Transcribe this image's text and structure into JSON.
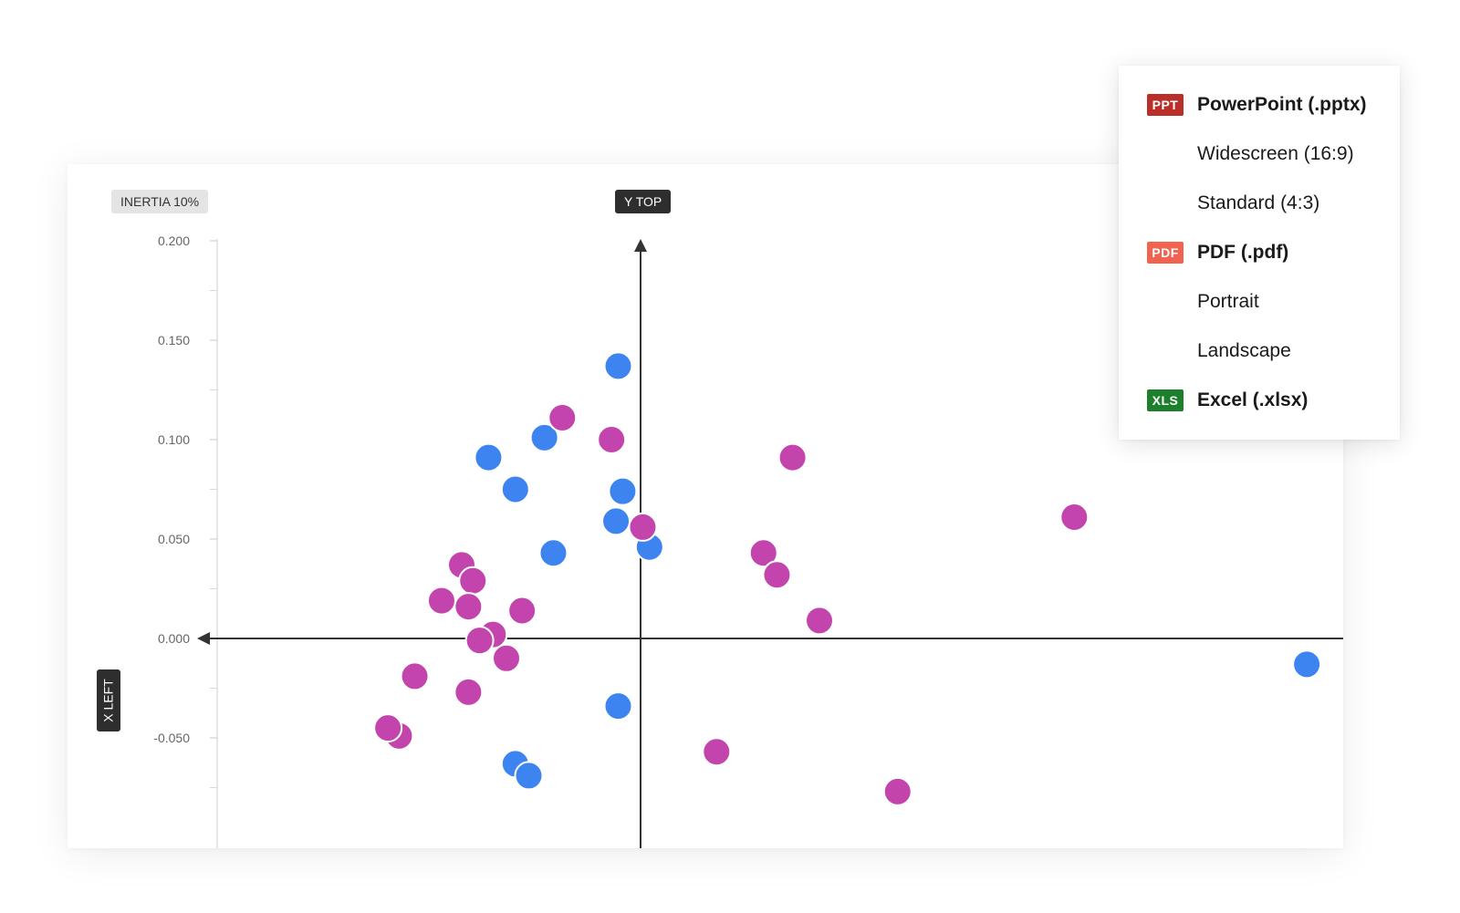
{
  "chart_data": {
    "type": "scatter",
    "yticks": [
      "0.200",
      "0.150",
      "0.100",
      "0.050",
      "0.000",
      "-0.050"
    ],
    "ylim": [
      -0.095,
      0.205
    ],
    "xlim": [
      -0.19,
      0.32
    ],
    "axis_labels": {
      "x": "X LEFT",
      "y": "Y TOP"
    },
    "inertia_label": "INERTIA 10%",
    "series": [
      {
        "color": "#3d84f0",
        "points": [
          [
            -0.01,
            0.137
          ],
          [
            -0.043,
            0.101
          ],
          [
            -0.068,
            0.091
          ],
          [
            -0.056,
            0.075
          ],
          [
            -0.008,
            0.074
          ],
          [
            -0.011,
            0.059
          ],
          [
            0.004,
            0.046
          ],
          [
            -0.039,
            0.043
          ],
          [
            -0.01,
            -0.034
          ],
          [
            -0.056,
            -0.063
          ],
          [
            -0.05,
            -0.069
          ],
          [
            0.298,
            -0.013
          ]
        ]
      },
      {
        "color": "#c444ad",
        "points": [
          [
            -0.035,
            0.111
          ],
          [
            -0.013,
            0.1
          ],
          [
            0.068,
            0.091
          ],
          [
            0.194,
            0.061
          ],
          [
            0.001,
            0.056
          ],
          [
            0.055,
            0.043
          ],
          [
            0.061,
            0.032
          ],
          [
            0.08,
            0.009
          ],
          [
            -0.08,
            0.037
          ],
          [
            -0.075,
            0.029
          ],
          [
            -0.089,
            0.019
          ],
          [
            -0.077,
            0.016
          ],
          [
            -0.053,
            0.014
          ],
          [
            -0.066,
            0.002
          ],
          [
            -0.072,
            -0.001
          ],
          [
            -0.06,
            -0.01
          ],
          [
            -0.101,
            -0.019
          ],
          [
            -0.077,
            -0.027
          ],
          [
            -0.108,
            -0.049
          ],
          [
            -0.113,
            -0.045
          ],
          [
            0.034,
            -0.057
          ],
          [
            0.115,
            -0.077
          ]
        ]
      }
    ]
  },
  "export_menu": {
    "pptx": {
      "badge": "PPT",
      "badge_color": "#b9302a",
      "label": "PowerPoint (.pptx)"
    },
    "widescreen": {
      "label": "Widescreen (16:9)"
    },
    "standard": {
      "label": "Standard (4:3)"
    },
    "pdf": {
      "badge": "PDF",
      "badge_color": "#ef6350",
      "label": "PDF (.pdf)"
    },
    "portrait": {
      "label": "Portrait"
    },
    "landscape": {
      "label": "Landscape"
    },
    "xlsx": {
      "badge": "XLS",
      "badge_color": "#1b7f2b",
      "label": "Excel (.xlsx)"
    }
  }
}
